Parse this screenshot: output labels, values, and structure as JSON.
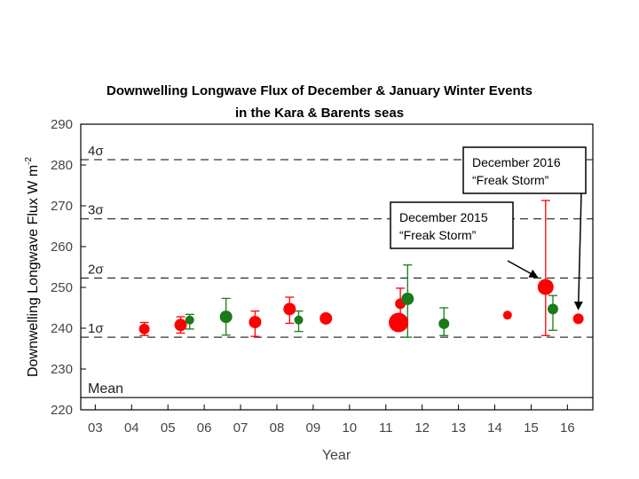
{
  "chart_data": {
    "type": "scatter",
    "title": "Downwelling Longwave Flux of December & January Winter Events",
    "subtitle": "in the Kara & Barents seas",
    "ylabel": "Downwelling Longwave Flux W m",
    "ylabel_superscript": "-2",
    "xlabel": "Year",
    "ylim": [
      220,
      290
    ],
    "y_ticks": [
      "220",
      "230",
      "240",
      "250",
      "260",
      "270",
      "280",
      "290"
    ],
    "x_ticks": [
      "03",
      "04",
      "05",
      "06",
      "07",
      "08",
      "09",
      "10",
      "11",
      "12",
      "13",
      "14",
      "15",
      "16"
    ],
    "grid": false,
    "reference_lines": [
      {
        "label": "Mean",
        "value": 223
      },
      {
        "label": "1σ",
        "value": 237.8
      },
      {
        "label": "2σ",
        "value": 252.3
      },
      {
        "label": "3σ",
        "value": 266.8
      },
      {
        "label": "4σ",
        "value": 281.3
      }
    ],
    "series": [
      {
        "color": "#ff0000",
        "points": [
          {
            "x": 4.35,
            "y": 239.8,
            "low": 238.2,
            "high": 241.4,
            "size": 6
          },
          {
            "x": 5.35,
            "y": 240.8,
            "low": 238.8,
            "high": 242.8,
            "size": 7
          },
          {
            "x": 7.4,
            "y": 241.5,
            "low": 238.0,
            "high": 244.2,
            "size": 7
          },
          {
            "x": 8.35,
            "y": 244.7,
            "low": 241.2,
            "high": 247.6,
            "size": 7
          },
          {
            "x": 9.35,
            "y": 242.4,
            "low": 242.4,
            "high": 242.4,
            "size": 7
          },
          {
            "x": 11.35,
            "y": 241.4,
            "low": 241.4,
            "high": 241.4,
            "size": 11
          },
          {
            "x": 11.4,
            "y": 246.0,
            "low": 242.2,
            "high": 249.8,
            "size": 6
          },
          {
            "x": 14.35,
            "y": 243.2,
            "low": 243.2,
            "high": 243.2,
            "size": 5
          },
          {
            "x": 15.4,
            "y": 250.1,
            "low": 238.2,
            "high": 271.3,
            "size": 9
          },
          {
            "x": 16.3,
            "y": 242.3,
            "low": 242.3,
            "high": 242.3,
            "size": 6
          }
        ]
      },
      {
        "color": "#1a7a1a",
        "points": [
          {
            "x": 5.6,
            "y": 242.0,
            "low": 239.8,
            "high": 243.4,
            "size": 5
          },
          {
            "x": 6.6,
            "y": 242.8,
            "low": 238.3,
            "high": 247.3,
            "size": 7
          },
          {
            "x": 8.6,
            "y": 242.0,
            "low": 239.2,
            "high": 244.2,
            "size": 5
          },
          {
            "x": 11.6,
            "y": 247.2,
            "low": 237.8,
            "high": 255.5,
            "size": 7
          },
          {
            "x": 12.6,
            "y": 241.1,
            "low": 238.2,
            "high": 245.0,
            "size": 6
          },
          {
            "x": 15.6,
            "y": 244.7,
            "low": 239.5,
            "high": 248.0,
            "size": 6
          }
        ]
      }
    ],
    "annotations": [
      {
        "line1": "December 2015",
        "line2": "“Freak Storm”",
        "target_x": 15.4,
        "target_y": 251.5
      },
      {
        "line1": "December 2016",
        "line2": "“Freak Storm”",
        "target_x": 16.3,
        "target_y": 244.8
      }
    ]
  }
}
